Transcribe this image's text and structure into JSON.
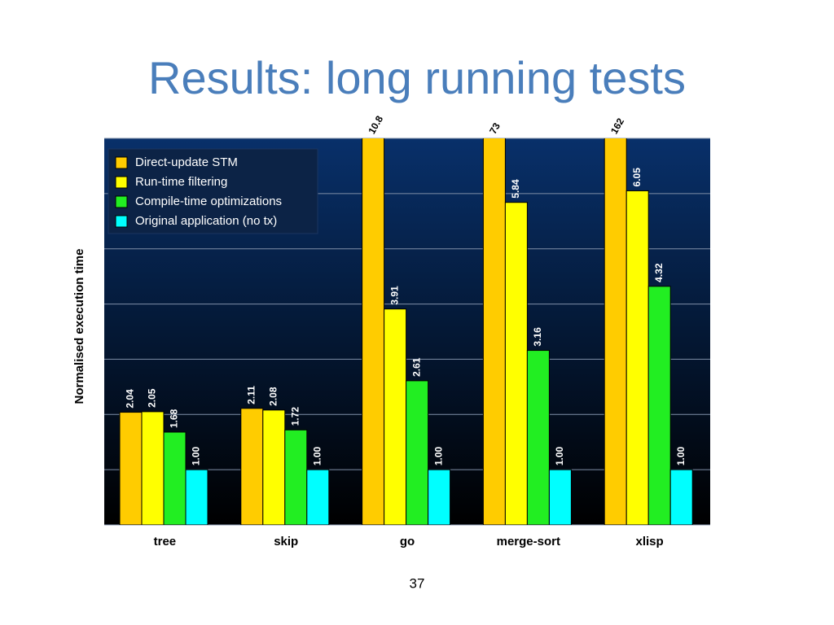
{
  "chart_data": {
    "type": "bar",
    "title": "Results: long running tests",
    "y_label": "Normalised execution time",
    "categories": [
      "tree",
      "skip",
      "go",
      "merge-sort",
      "xlisp"
    ],
    "series": [
      {
        "name": "Direct-update STM",
        "color": "#ffcc00",
        "values": [
          2.04,
          2.11,
          10.8,
          73,
          162
        ],
        "value_labels": [
          "2.04",
          "2.11",
          "10.8",
          "73",
          "162"
        ]
      },
      {
        "name": "Run-time filtering",
        "color": "#ffff00",
        "values": [
          2.05,
          2.08,
          3.91,
          5.84,
          6.05
        ],
        "value_labels": [
          "2.05",
          "2.08",
          "3.91",
          "5.84",
          "6.05"
        ]
      },
      {
        "name": "Compile-time optimizations",
        "color": "#22ee22",
        "values": [
          1.68,
          1.72,
          2.61,
          3.16,
          4.32
        ],
        "value_labels": [
          "1.68",
          "1.72",
          "2.61",
          "3.16",
          "4.32"
        ]
      },
      {
        "name": "Original application (no tx)",
        "color": "#00ffff",
        "values": [
          1,
          1,
          1,
          1,
          1
        ],
        "value_labels": [
          "1.00",
          "1.00",
          "1.00",
          "1.00",
          "1.00"
        ]
      }
    ],
    "ylim": [
      0,
      7
    ],
    "yticks": [
      0,
      1,
      2,
      3,
      4,
      5,
      6,
      7
    ],
    "grid": true,
    "legend": "upper left"
  },
  "page_number": "37"
}
